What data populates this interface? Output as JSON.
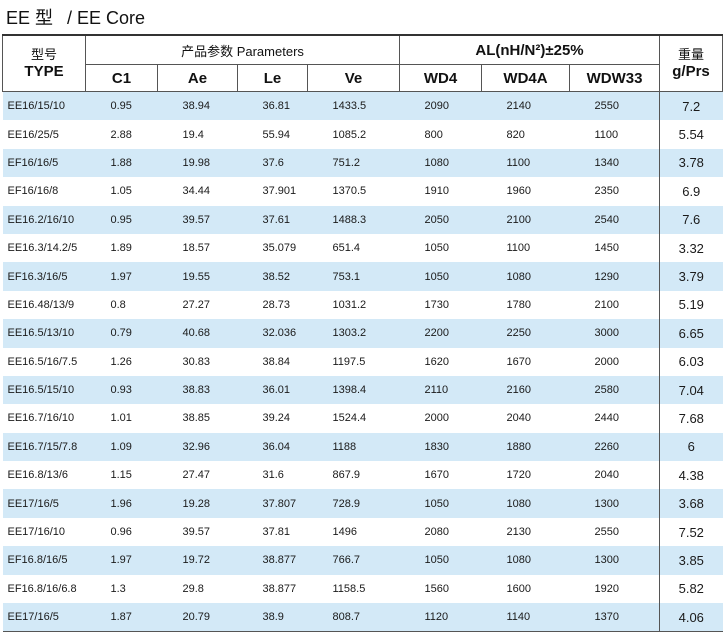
{
  "title": {
    "main": "EE 型",
    "sub": "/ EE Core"
  },
  "header": {
    "type_cn": "型号",
    "type_en": "TYPE",
    "params_label": "产品参数  Parameters",
    "al_label": "AL(nH/N²)±25%",
    "weight_cn": "重量",
    "weight_unit": "g/Prs",
    "cols": [
      "C1",
      "Ae",
      "Le",
      "Ve",
      "WD4",
      "WD4A",
      "WDW33"
    ]
  },
  "rows": [
    [
      "EE16/15/10",
      "0.95",
      "38.94",
      "36.81",
      "1433.5",
      "2090",
      "2140",
      "2550",
      "7.2"
    ],
    [
      "EE16/25/5",
      "2.88",
      "19.4",
      "55.94",
      "1085.2",
      "800",
      "820",
      "1100",
      "5.54"
    ],
    [
      "EF16/16/5",
      "1.88",
      "19.98",
      "37.6",
      "751.2",
      "1080",
      "1100",
      "1340",
      "3.78"
    ],
    [
      "EF16/16/8",
      "1.05",
      "34.44",
      "37.901",
      "1370.5",
      "1910",
      "1960",
      "2350",
      "6.9"
    ],
    [
      "EE16.2/16/10",
      "0.95",
      "39.57",
      "37.61",
      "1488.3",
      "2050",
      "2100",
      "2540",
      "7.6"
    ],
    [
      "EE16.3/14.2/5",
      "1.89",
      "18.57",
      "35.079",
      "651.4",
      "1050",
      "1100",
      "1450",
      "3.32"
    ],
    [
      "EF16.3/16/5",
      "1.97",
      "19.55",
      "38.52",
      "753.1",
      "1050",
      "1080",
      "1290",
      "3.79"
    ],
    [
      "EE16.48/13/9",
      "0.8",
      "27.27",
      "28.73",
      "1031.2",
      "1730",
      "1780",
      "2100",
      "5.19"
    ],
    [
      "EE16.5/13/10",
      "0.79",
      "40.68",
      "32.036",
      "1303.2",
      "2200",
      "2250",
      "3000",
      "6.65"
    ],
    [
      "EE16.5/16/7.5",
      "1.26",
      "30.83",
      "38.84",
      "1197.5",
      "1620",
      "1670",
      "2000",
      "6.03"
    ],
    [
      "EE16.5/15/10",
      "0.93",
      "38.83",
      "36.01",
      "1398.4",
      "2110",
      "2160",
      "2580",
      "7.04"
    ],
    [
      "EE16.7/16/10",
      "1.01",
      "38.85",
      "39.24",
      "1524.4",
      "2000",
      "2040",
      "2440",
      "7.68"
    ],
    [
      "EE16.7/15/7.8",
      "1.09",
      "32.96",
      "36.04",
      "1188",
      "1830",
      "1880",
      "2260",
      "6"
    ],
    [
      "EE16.8/13/6",
      "1.15",
      "27.47",
      "31.6",
      "867.9",
      "1670",
      "1720",
      "2040",
      "4.38"
    ],
    [
      "EE17/16/5",
      "1.96",
      "19.28",
      "37.807",
      "728.9",
      "1050",
      "1080",
      "1300",
      "3.68"
    ],
    [
      "EE17/16/10",
      "0.96",
      "39.57",
      "37.81",
      "1496",
      "2080",
      "2130",
      "2550",
      "7.52"
    ],
    [
      "EF16.8/16/5",
      "1.97",
      "19.72",
      "38.877",
      "766.7",
      "1050",
      "1080",
      "1300",
      "3.85"
    ],
    [
      "EF16.8/16/6.8",
      "1.3",
      "29.8",
      "38.877",
      "1158.5",
      "1560",
      "1600",
      "1920",
      "5.82"
    ],
    [
      "EE17/16/5",
      "1.87",
      "20.79",
      "38.9",
      "808.7",
      "1120",
      "1140",
      "1370",
      "4.06"
    ]
  ],
  "colors": {
    "row_shade": "#d3e9f7",
    "border": "#555555"
  }
}
